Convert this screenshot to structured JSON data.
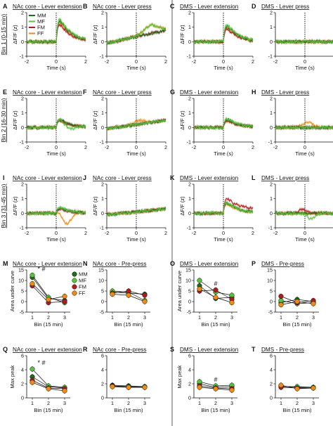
{
  "colors": {
    "MM": "#1f6b1f",
    "MF": "#57c23a",
    "FM": "#b01c1c",
    "FF": "#ef8a12"
  },
  "legend": {
    "entries": [
      "MM",
      "MF",
      "FM",
      "FF"
    ]
  },
  "row_labels": [
    "Bin 1 (0-15 min)",
    "Bin 2 (16-30 min)",
    "Bin 3 (31-45 min)"
  ],
  "trace_axis": {
    "ylabel": "ΔF/F (z)",
    "xlabel": "Time (s)",
    "xticks": [
      "-2",
      "0",
      "2"
    ],
    "yticks": [
      "-1",
      "0",
      "1",
      "2"
    ]
  },
  "summary_axis": {
    "xlabel": "Bin (15 min)",
    "xticks": [
      "1",
      "2",
      "3"
    ]
  },
  "chart_data": [
    {
      "type": "line",
      "letter": "A",
      "title": "NAc core - Lever extension",
      "event": "extension",
      "region": "nac",
      "bin": 1,
      "xlim": [
        -2,
        2
      ],
      "ylim": [
        -1,
        2
      ],
      "ylabel": "ΔF/F (z)",
      "xlabel": "Time (s)"
    },
    {
      "type": "line",
      "letter": "B",
      "title": "NAc core - Lever press",
      "event": "press",
      "region": "nac",
      "bin": 1,
      "xlim": [
        -2,
        2
      ],
      "ylim": [
        -1,
        2
      ],
      "ylabel": "ΔF/F (z)",
      "xlabel": "Time (s)"
    },
    {
      "type": "line",
      "letter": "C",
      "title": "DMS - Lever extension",
      "event": "extension",
      "region": "dms",
      "bin": 1,
      "xlim": [
        -2,
        2
      ],
      "ylim": [
        -1,
        2
      ],
      "ylabel": "ΔF/F (z)",
      "xlabel": "Time (s)"
    },
    {
      "type": "line",
      "letter": "D",
      "title": "DMS - Lever press",
      "event": "press",
      "region": "dms",
      "bin": 1,
      "xlim": [
        -2,
        2
      ],
      "ylim": [
        -1,
        2
      ],
      "ylabel": "",
      "xlabel": "Time (s)"
    },
    {
      "type": "line",
      "letter": "E",
      "title": "NAc core - Lever extension",
      "event": "extension",
      "region": "nac",
      "bin": 2,
      "xlim": [
        -2,
        2
      ],
      "ylim": [
        -1,
        2
      ],
      "ylabel": "ΔF/F (z)",
      "xlabel": "Time (s)"
    },
    {
      "type": "line",
      "letter": "F",
      "title": "NAc core - Lever press",
      "event": "press",
      "region": "nac",
      "bin": 2,
      "xlim": [
        -2,
        2
      ],
      "ylim": [
        -1,
        2
      ],
      "ylabel": "ΔF/F (z)",
      "xlabel": "Time (s)"
    },
    {
      "type": "line",
      "letter": "G",
      "title": "DMS - Lever extension",
      "event": "extension",
      "region": "dms",
      "bin": 2,
      "xlim": [
        -2,
        2
      ],
      "ylim": [
        -1,
        2
      ],
      "ylabel": "ΔF/F (z)",
      "xlabel": "Time (s)"
    },
    {
      "type": "line",
      "letter": "H",
      "title": "DMS - Lever press",
      "event": "press",
      "region": "dms",
      "bin": 2,
      "xlim": [
        -2,
        2
      ],
      "ylim": [
        -1,
        2
      ],
      "ylabel": "",
      "xlabel": "Time (s)"
    },
    {
      "type": "line",
      "letter": "I",
      "title": "NAc core - Lever extension",
      "event": "extension",
      "region": "nac",
      "bin": 3,
      "xlim": [
        -2,
        2
      ],
      "ylim": [
        -1,
        2
      ],
      "ylabel": "ΔF/F (z)",
      "xlabel": "Time (s)"
    },
    {
      "type": "line",
      "letter": "J",
      "title": "NAc core - Lever press",
      "event": "press",
      "region": "nac",
      "bin": 3,
      "xlim": [
        -2,
        2
      ],
      "ylim": [
        -1,
        2
      ],
      "ylabel": "ΔF/F (z)",
      "xlabel": "Time (s)"
    },
    {
      "type": "line",
      "letter": "K",
      "title": "DMS - Lever extension",
      "event": "extension",
      "region": "dms",
      "bin": 3,
      "xlim": [
        -2,
        2
      ],
      "ylim": [
        -1,
        2
      ],
      "ylabel": "ΔF/F (z)",
      "xlabel": "Time (s)"
    },
    {
      "type": "line",
      "letter": "L",
      "title": "DMS - Lever press",
      "event": "press",
      "region": "dms",
      "bin": 3,
      "xlim": [
        -2,
        2
      ],
      "ylim": [
        -1,
        2
      ],
      "ylabel": "",
      "xlabel": "Time (s)"
    },
    {
      "type": "scatter",
      "letter": "M",
      "title": "NAc core - Lever extension",
      "ylabel": "Area under curve",
      "xlabel": "Bin (15 min)",
      "ylim": [
        -5,
        15
      ],
      "yticks": [
        -5,
        0,
        5,
        10,
        15
      ],
      "categories": [
        1,
        2,
        3
      ],
      "annotations": [
        "* #"
      ],
      "show_legend": true,
      "series": [
        {
          "name": "MM",
          "values": [
            11.5,
            1.5,
            0.5
          ]
        },
        {
          "name": "MF",
          "values": [
            12.5,
            2.0,
            -0.5
          ]
        },
        {
          "name": "FM",
          "values": [
            7.5,
            -0.5,
            0.0
          ]
        },
        {
          "name": "FF",
          "values": [
            8.5,
            1.0,
            2.5
          ]
        }
      ]
    },
    {
      "type": "scatter",
      "letter": "N",
      "title": "NAc core - Pre-press",
      "ylabel": "",
      "xlabel": "Bin (15 min)",
      "ylim": [
        -5,
        15
      ],
      "yticks": [
        -5,
        0,
        5,
        10,
        15
      ],
      "categories": [
        1,
        2,
        3
      ],
      "series": [
        {
          "name": "MM",
          "values": [
            4.5,
            4.0,
            3.5
          ]
        },
        {
          "name": "MF",
          "values": [
            5.0,
            4.5,
            0.5
          ]
        },
        {
          "name": "FM",
          "values": [
            4.0,
            5.0,
            3.0
          ]
        },
        {
          "name": "FF",
          "values": [
            3.5,
            3.0,
            0.0
          ]
        }
      ]
    },
    {
      "type": "scatter",
      "letter": "O",
      "title": "DMS - Lever extension",
      "ylabel": "Area under curve",
      "xlabel": "Bin (15 min)",
      "ylim": [
        -5,
        15
      ],
      "yticks": [
        -5,
        0,
        5,
        10,
        15
      ],
      "categories": [
        1,
        2,
        3
      ],
      "annotations": [
        "#"
      ],
      "series": [
        {
          "name": "MM",
          "values": [
            7.5,
            1.5,
            2.0
          ]
        },
        {
          "name": "MF",
          "values": [
            10.0,
            4.5,
            3.0
          ]
        },
        {
          "name": "FM",
          "values": [
            5.0,
            5.5,
            1.0
          ]
        },
        {
          "name": "FF",
          "values": [
            6.0,
            2.0,
            -0.5
          ]
        }
      ]
    },
    {
      "type": "scatter",
      "letter": "P",
      "title": "DMS - Pre-press",
      "ylabel": "",
      "xlabel": "Bin (15 min)",
      "ylim": [
        -5,
        15
      ],
      "yticks": [
        -5,
        0,
        5,
        10,
        15
      ],
      "categories": [
        1,
        2,
        3
      ],
      "series": [
        {
          "name": "MM",
          "values": [
            -0.5,
            1.0,
            0.0
          ]
        },
        {
          "name": "MF",
          "values": [
            0.5,
            -1.0,
            -0.5
          ]
        },
        {
          "name": "FM",
          "values": [
            2.5,
            -0.5,
            0.5
          ]
        },
        {
          "name": "FF",
          "values": [
            -1.5,
            0.0,
            -1.0
          ]
        }
      ]
    },
    {
      "type": "scatter",
      "letter": "Q",
      "title": "NAc core - Lever extension",
      "ylabel": "Max peak",
      "xlabel": "Bin (15 min)",
      "ylim": [
        0,
        6
      ],
      "yticks": [
        0,
        2,
        4,
        6
      ],
      "categories": [
        1,
        2,
        3
      ],
      "annotations": [
        "* #"
      ],
      "series": [
        {
          "name": "MM",
          "values": [
            3.0,
            1.6,
            1.4
          ]
        },
        {
          "name": "MF",
          "values": [
            4.1,
            1.7,
            1.5
          ]
        },
        {
          "name": "FM",
          "values": [
            2.5,
            1.4,
            1.3
          ]
        },
        {
          "name": "FF",
          "values": [
            2.2,
            1.3,
            1.0
          ]
        }
      ]
    },
    {
      "type": "scatter",
      "letter": "R",
      "title": "NAc core - Pre-press",
      "ylabel": "",
      "xlabel": "Bin (15 min)",
      "ylim": [
        0,
        6
      ],
      "yticks": [
        0,
        2,
        4,
        6
      ],
      "categories": [
        1,
        2,
        3
      ],
      "series": [
        {
          "name": "MM",
          "values": [
            1.8,
            1.7,
            1.6
          ]
        },
        {
          "name": "MF",
          "values": [
            1.7,
            1.6,
            1.6
          ]
        },
        {
          "name": "FM",
          "values": [
            1.7,
            1.5,
            1.5
          ]
        },
        {
          "name": "FF",
          "values": [
            1.6,
            1.5,
            1.5
          ]
        }
      ]
    },
    {
      "type": "scatter",
      "letter": "S",
      "title": "DMS - Lever extension",
      "ylabel": "Max peak",
      "xlabel": "Bin (15 min)",
      "ylim": [
        0,
        6
      ],
      "yticks": [
        0,
        2,
        4,
        6
      ],
      "categories": [
        1,
        2,
        3
      ],
      "annotations": [
        "#"
      ],
      "series": [
        {
          "name": "MM",
          "values": [
            2.0,
            1.5,
            1.6
          ]
        },
        {
          "name": "MF",
          "values": [
            2.3,
            1.7,
            1.8
          ]
        },
        {
          "name": "FM",
          "values": [
            1.7,
            1.4,
            1.3
          ]
        },
        {
          "name": "FF",
          "values": [
            1.5,
            1.3,
            1.1
          ]
        }
      ]
    },
    {
      "type": "scatter",
      "letter": "T",
      "title": "DMS - Pre-press",
      "ylabel": "",
      "xlabel": "Bin (15 min)",
      "ylim": [
        0,
        6
      ],
      "yticks": [
        0,
        2,
        4,
        6
      ],
      "categories": [
        1,
        2,
        3
      ],
      "series": [
        {
          "name": "MM",
          "values": [
            1.7,
            1.5,
            1.5
          ]
        },
        {
          "name": "MF",
          "values": [
            1.6,
            1.6,
            1.5
          ]
        },
        {
          "name": "FM",
          "values": [
            1.5,
            1.4,
            1.4
          ]
        },
        {
          "name": "FF",
          "values": [
            1.8,
            1.3,
            1.4
          ]
        }
      ]
    }
  ]
}
